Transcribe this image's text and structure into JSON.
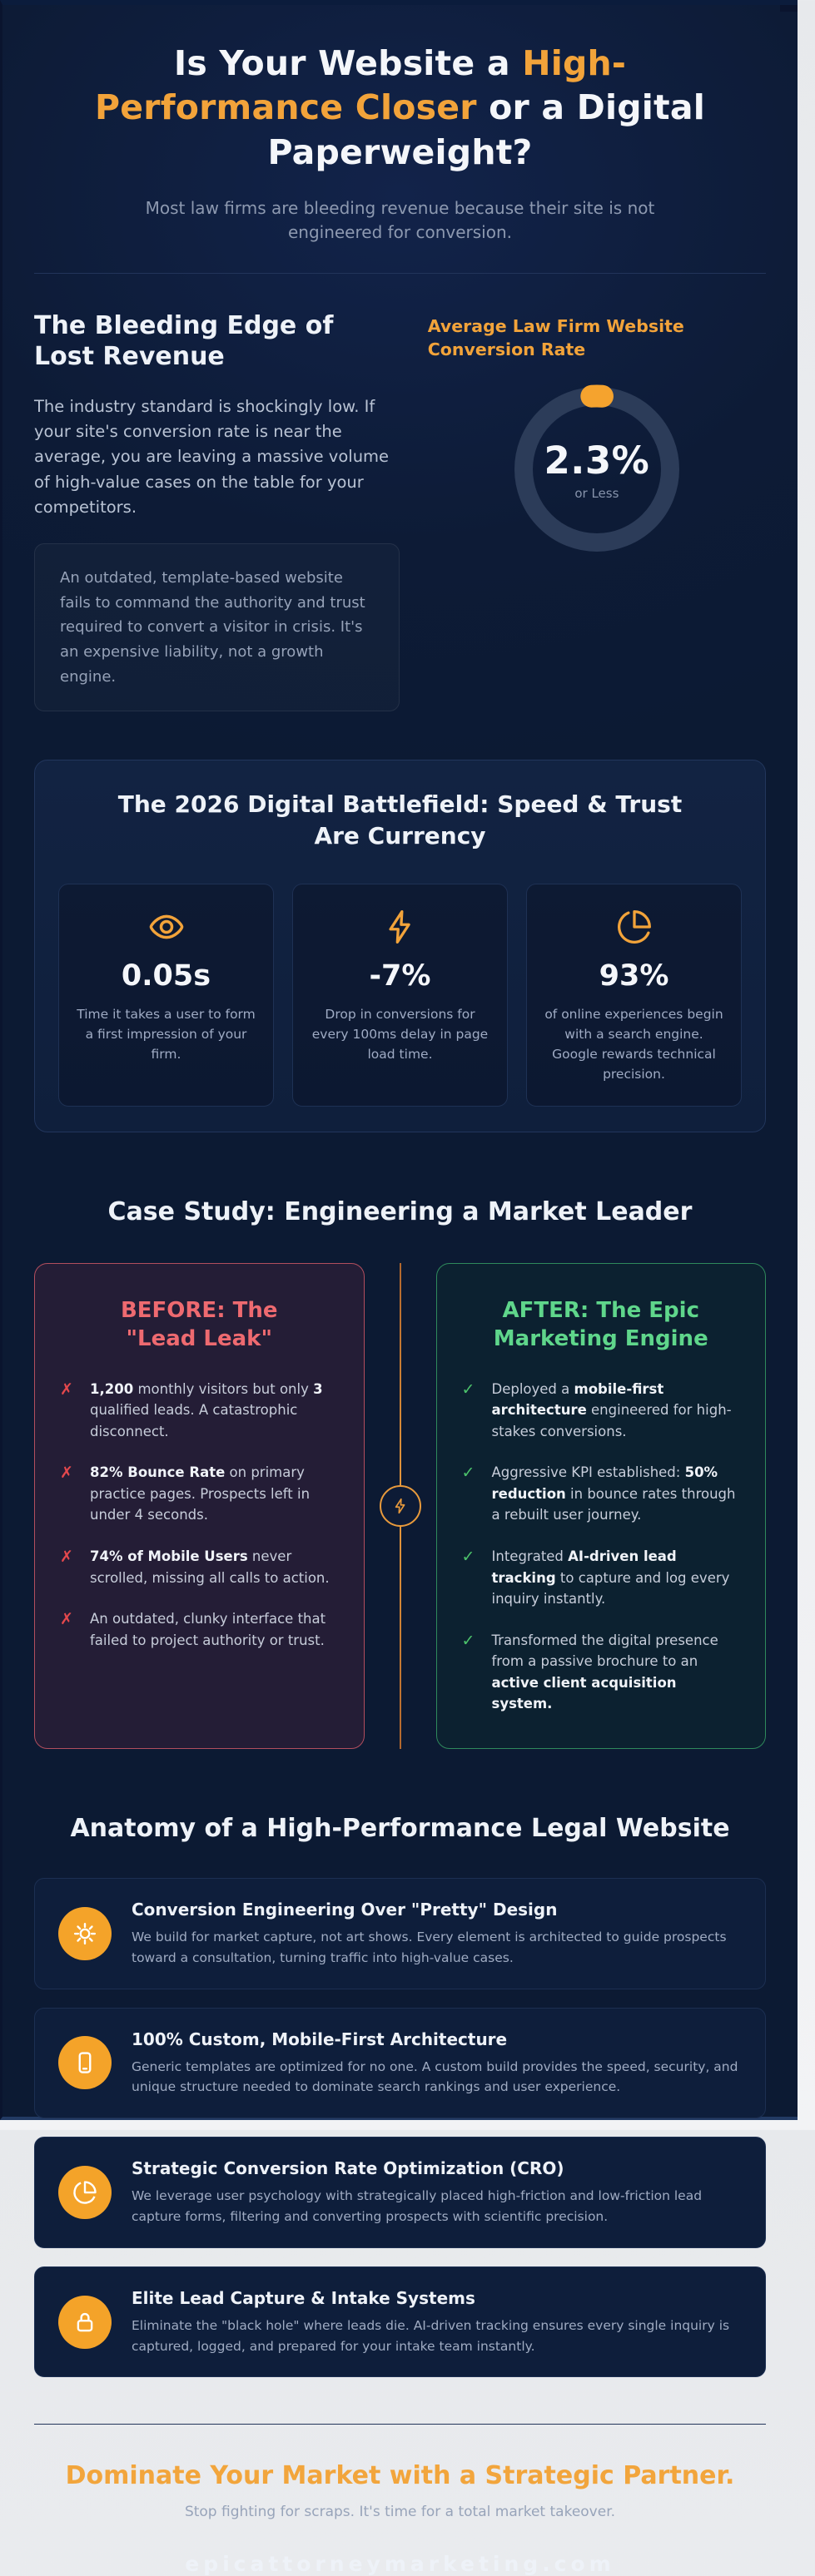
{
  "colors": {
    "accent_orange": "#f2a33a",
    "danger_red": "#e5484d",
    "success_green": "#4cc36b",
    "panel_navy": "#0d1b36"
  },
  "header": {
    "title_part1": "Is Your Website a ",
    "title_accent": "High-Performance Closer",
    "title_part2": " or a Digital Paperweight?",
    "subtitle": "Most law firms are bleeding revenue because their site is not engineered for conversion."
  },
  "bleeding_edge": {
    "heading": "The Bleeding Edge of Lost Revenue",
    "paragraph": "The industry standard is shockingly low. If your site's conversion rate is near the average, you are leaving a massive volume of high-value cases on the table for your competitors.",
    "callout": "An outdated, template-based website fails to command the authority and trust required to convert a visitor in crisis. It's an expensive liability, not a growth engine.",
    "chart_heading": "Average Law Firm Website Conversion Rate",
    "gauge_value": "2.3%",
    "gauge_caption": "or Less"
  },
  "chart_data": {
    "type": "pie",
    "subtype": "donut-gauge",
    "title": "Average Law Firm Website Conversion Rate",
    "labels": [
      "Average law firm website conversion rate",
      "Remainder"
    ],
    "values": [
      2.3,
      97.7
    ],
    "center_label": "2.3%",
    "center_sublabel": "or Less",
    "segment_color": "#f5a32e",
    "track_color": "#2c3c59",
    "legend_position": "none"
  },
  "battlefield": {
    "heading": "The 2026 Digital Battlefield: Speed & Trust Are Currency",
    "stats": [
      {
        "icon": "eye-icon",
        "value": "0.05s",
        "text": "Time it takes a user to form a first impression of your firm."
      },
      {
        "icon": "lightning-icon",
        "value": "-7%",
        "text": "Drop in conversions for every 100ms delay in page load time."
      },
      {
        "icon": "pie-chart-icon",
        "value": "93%",
        "text": "of online experiences begin with a search engine. Google rewards technical precision."
      }
    ]
  },
  "case_study": {
    "heading": "Case Study: Engineering a Market Leader",
    "x_mark": "✗",
    "check_mark": "✓",
    "before": {
      "title": "BEFORE: The \"Lead Leak\"",
      "items": [
        "**1,200** monthly visitors but only **3** qualified leads. A catastrophic disconnect.",
        "**82% Bounce Rate** on primary practice pages. Prospects left in under 4 seconds.",
        "**74% of Mobile Users** never scrolled, missing all calls to action.",
        "An outdated, clunky interface that failed to project authority or trust."
      ]
    },
    "after": {
      "title": "AFTER: The Epic Marketing Engine",
      "items": [
        "Deployed a **mobile-first architecture** engineered for high-stakes conversions.",
        "Aggressive KPI established: **50% reduction** in bounce rates through a rebuilt user journey.",
        "Integrated **AI-driven lead tracking** to capture and log every inquiry instantly.",
        "Transformed the digital presence from a passive brochure to an **active client acquisition system.**"
      ]
    }
  },
  "anatomy": {
    "heading": "Anatomy of a High-Performance Legal Website",
    "items": [
      {
        "icon": "chip-icon",
        "title": "Conversion Engineering Over \"Pretty\" Design",
        "text": "We build for market capture, not art shows. Every element is architected to guide prospects toward a consultation, turning traffic into high-value cases."
      },
      {
        "icon": "smartphone-icon",
        "title": "100% Custom, Mobile-First Architecture",
        "text": "Generic templates are optimized for no one. A custom build provides the speed, security, and unique structure needed to dominate search rankings and user experience."
      },
      {
        "icon": "pie-chart-icon",
        "title": "Strategic Conversion Rate Optimization (CRO)",
        "text": "We leverage user psychology with strategically placed high-friction and low-friction lead capture forms, filtering and converting prospects with scientific precision."
      },
      {
        "icon": "lock-icon",
        "title": "Elite Lead Capture & Intake Systems",
        "text": "Eliminate the \"black hole\" where leads die. AI-driven tracking ensures every single inquiry is captured, logged, and prepared for your intake team instantly."
      }
    ]
  },
  "footer": {
    "heading": "Dominate Your Market with a Strategic Partner.",
    "subheading": "Stop fighting for scraps. It's time for a total market takeover.",
    "domain": "epicattorneymarketing.com"
  }
}
